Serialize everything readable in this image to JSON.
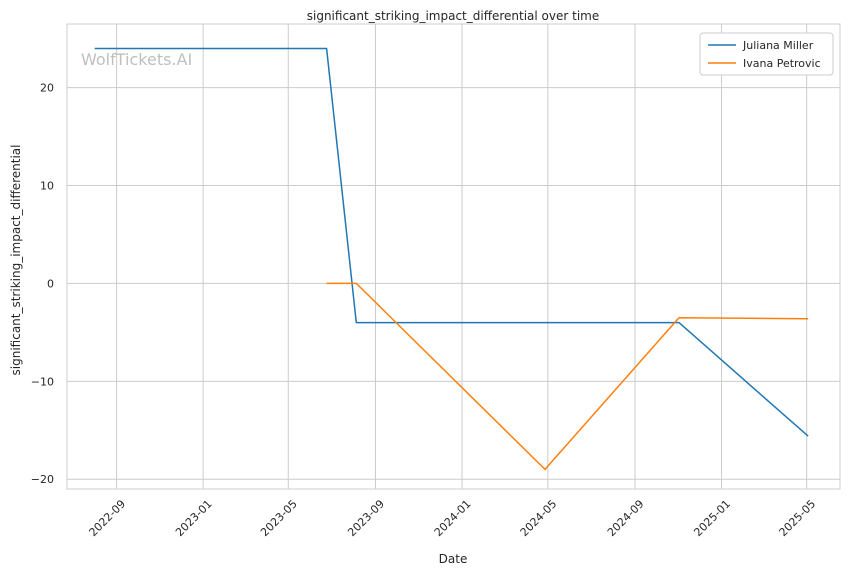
{
  "watermark": "WolfTickets.AI",
  "chart_data": {
    "type": "line",
    "title": "significant_striking_impact_differential over time",
    "xlabel": "Date",
    "ylabel": "significant_striking_impact_differential",
    "x_ticks": [
      "2022-09",
      "2023-01",
      "2023-05",
      "2023-09",
      "2024-01",
      "2024-05",
      "2024-09",
      "2025-01",
      "2025-05"
    ],
    "y_ticks": [
      -20,
      -10,
      0,
      10,
      20
    ],
    "xlim": [
      "2022-06-23",
      "2025-06-17"
    ],
    "ylim": [
      -21,
      26.5
    ],
    "grid": true,
    "legend_position": "top-right",
    "series": [
      {
        "name": "Juliana Miller",
        "color": "#1f77b4",
        "points": [
          {
            "x": "2022-08-01",
            "y": 24
          },
          {
            "x": "2023-06-24",
            "y": 24
          },
          {
            "x": "2023-08-05",
            "y": -4
          },
          {
            "x": "2024-11-02",
            "y": -4
          },
          {
            "x": "2025-05-03",
            "y": -15.6
          }
        ]
      },
      {
        "name": "Ivana Petrovic",
        "color": "#ff7f0e",
        "points": [
          {
            "x": "2023-06-24",
            "y": 0
          },
          {
            "x": "2023-08-05",
            "y": 0
          },
          {
            "x": "2024-04-27",
            "y": -19
          },
          {
            "x": "2024-11-02",
            "y": -3.5
          },
          {
            "x": "2025-05-03",
            "y": -3.6
          }
        ]
      }
    ]
  }
}
